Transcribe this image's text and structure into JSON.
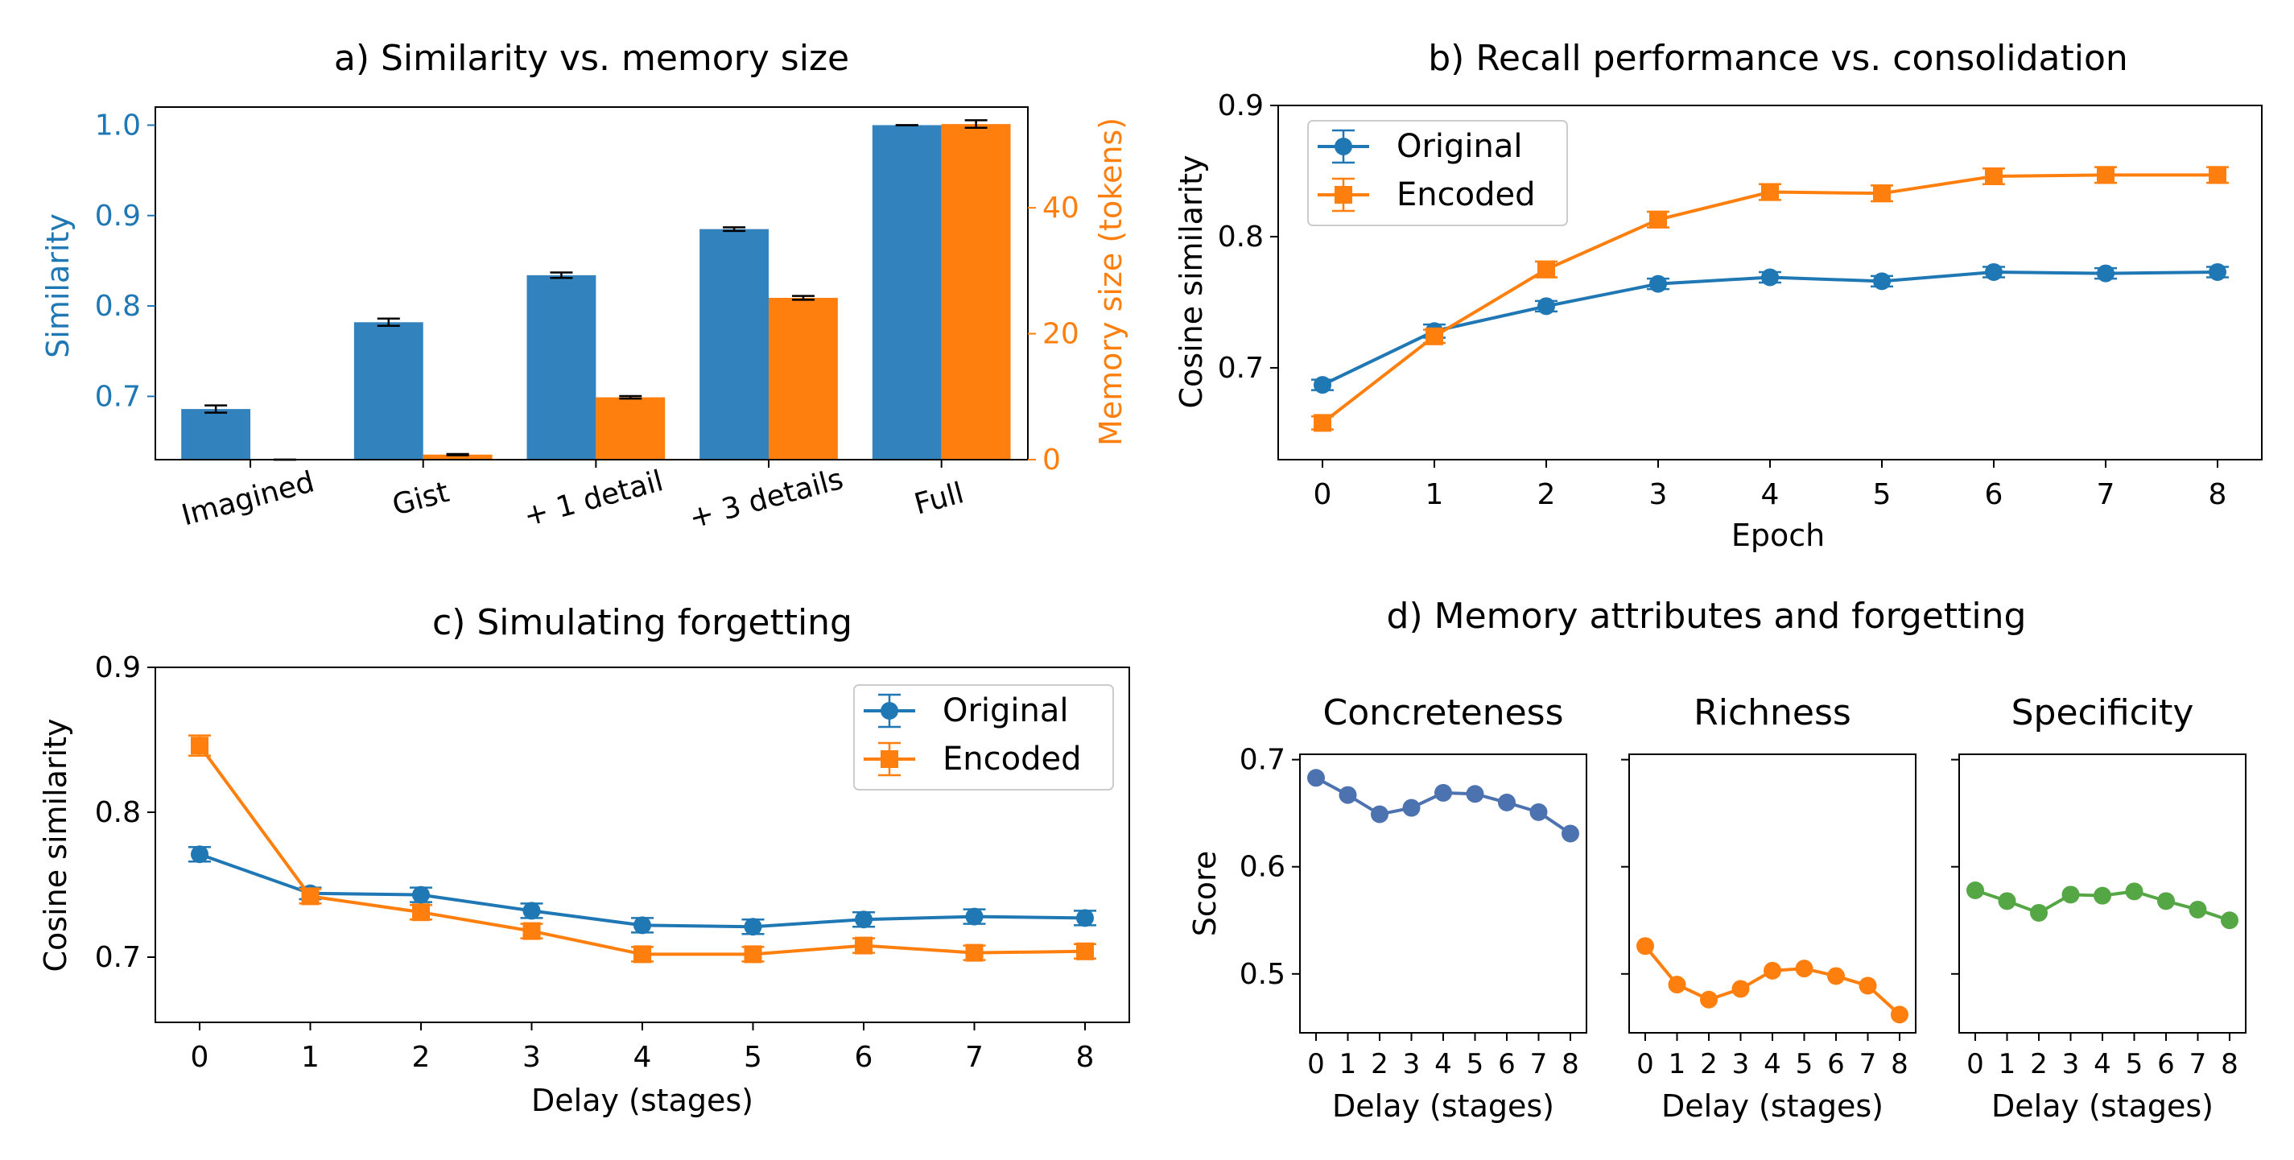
{
  "colors": {
    "original": "#1f77b4",
    "encoded": "#ff7f0e",
    "bar_blue": "#3182bd",
    "concreteness": "#4c72b0",
    "richness": "#ff7f0e",
    "specificity": "#55a745",
    "axis": "#000000"
  },
  "chart_data": [
    {
      "id": "a",
      "type": "bar",
      "title": "a)   Similarity vs. memory size",
      "categories": [
        "Imagined",
        "Gist",
        "+ 1 detail",
        "+ 3 details",
        "Full"
      ],
      "ylabel_left": "Similarity",
      "ylabel_right": "Memory size (tokens)",
      "ylim_left": [
        0.63,
        1.02
      ],
      "ylim_right": [
        0,
        56
      ],
      "yticks_left": [
        "0.7",
        "0.8",
        "0.9",
        "1.0"
      ],
      "yticks_right": [
        "0",
        "20",
        "40"
      ],
      "series": [
        {
          "name": "Similarity",
          "axis": "left",
          "values": [
            0.686,
            0.782,
            0.834,
            0.885,
            1.0
          ],
          "errors": [
            0.004,
            0.004,
            0.003,
            0.002,
            0.0
          ]
        },
        {
          "name": "Memory size (tokens)",
          "axis": "right",
          "values": [
            0,
            0.8,
            9.9,
            25.7,
            53.3
          ],
          "errors": [
            0,
            0.1,
            0.2,
            0.3,
            0.6
          ]
        }
      ]
    },
    {
      "id": "b",
      "type": "line",
      "title": "b)   Recall performance vs. consolidation",
      "xlabel": "Epoch",
      "ylabel": "Cosine similarity",
      "x": [
        0,
        1,
        2,
        3,
        4,
        5,
        6,
        7,
        8
      ],
      "ylim": [
        0.63,
        0.9
      ],
      "yticks": [
        "0.7",
        "0.8",
        "0.9"
      ],
      "legend": "top-left",
      "series": [
        {
          "name": "Original",
          "marker": "circle",
          "values": [
            0.687,
            0.728,
            0.747,
            0.764,
            0.769,
            0.766,
            0.773,
            0.772,
            0.773
          ],
          "errors": [
            0.004,
            0.005,
            0.004,
            0.004,
            0.004,
            0.004,
            0.004,
            0.004,
            0.004
          ]
        },
        {
          "name": "Encoded",
          "marker": "square",
          "values": [
            0.658,
            0.724,
            0.775,
            0.813,
            0.834,
            0.833,
            0.846,
            0.847,
            0.847
          ],
          "errors": [
            0.005,
            0.005,
            0.006,
            0.006,
            0.006,
            0.006,
            0.006,
            0.006,
            0.006
          ]
        }
      ]
    },
    {
      "id": "c",
      "type": "line",
      "title": "c)   Simulating forgetting",
      "xlabel": "Delay (stages)",
      "ylabel": "Cosine similarity",
      "x": [
        0,
        1,
        2,
        3,
        4,
        5,
        6,
        7,
        8
      ],
      "ylim": [
        0.655,
        0.9
      ],
      "yticks": [
        "0.7",
        "0.8",
        "0.9"
      ],
      "legend": "top-right",
      "series": [
        {
          "name": "Original",
          "marker": "circle",
          "values": [
            0.771,
            0.744,
            0.743,
            0.732,
            0.722,
            0.721,
            0.726,
            0.728,
            0.727
          ],
          "errors": [
            0.005,
            0.004,
            0.005,
            0.005,
            0.005,
            0.005,
            0.005,
            0.005,
            0.005
          ]
        },
        {
          "name": "Encoded",
          "marker": "square",
          "values": [
            0.846,
            0.742,
            0.731,
            0.718,
            0.702,
            0.702,
            0.708,
            0.703,
            0.704
          ],
          "errors": [
            0.007,
            0.005,
            0.005,
            0.005,
            0.005,
            0.005,
            0.005,
            0.005,
            0.005
          ]
        }
      ]
    },
    {
      "id": "d",
      "type": "line",
      "title": "d)   Memory attributes and forgetting",
      "xlabel": "Delay (stages)",
      "ylabel": "Score",
      "x": [
        0,
        1,
        2,
        3,
        4,
        5,
        6,
        7,
        8
      ],
      "ylim": [
        0.445,
        0.705
      ],
      "yticks": [
        "0.5",
        "0.6",
        "0.7"
      ],
      "panels": [
        {
          "title": "Concreteness",
          "color": "#4c72b0",
          "values": [
            0.683,
            0.667,
            0.649,
            0.655,
            0.669,
            0.668,
            0.66,
            0.651,
            0.631
          ]
        },
        {
          "title": "Richness",
          "color": "#ff7f0e",
          "values": [
            0.526,
            0.49,
            0.476,
            0.486,
            0.503,
            0.505,
            0.498,
            0.489,
            0.462
          ]
        },
        {
          "title": "Specificity",
          "color": "#55a745",
          "values": [
            0.578,
            0.568,
            0.557,
            0.574,
            0.573,
            0.577,
            0.568,
            0.56,
            0.55
          ]
        }
      ]
    }
  ]
}
